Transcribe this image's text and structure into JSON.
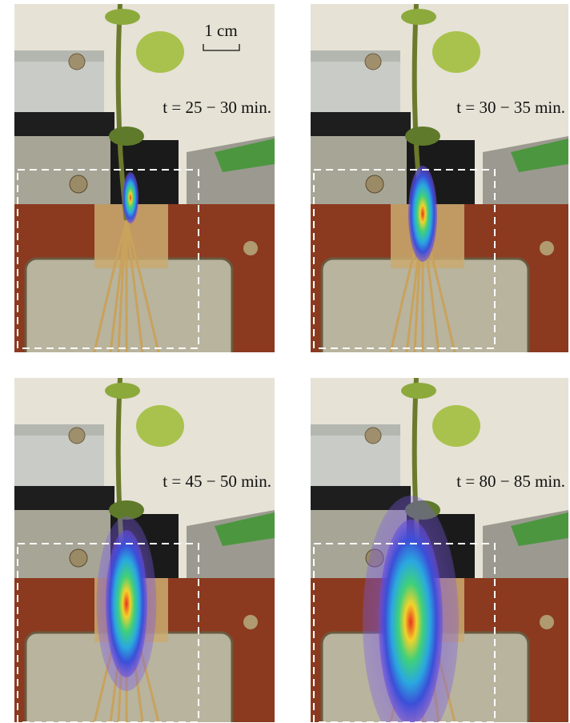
{
  "scale_bar": "1 cm",
  "panels": [
    {
      "label": "t = 25 − 30 min."
    },
    {
      "label": "t = 30 − 35 min."
    },
    {
      "label": "t = 45 − 50 min."
    },
    {
      "label": "t = 80 − 85 min."
    }
  ]
}
